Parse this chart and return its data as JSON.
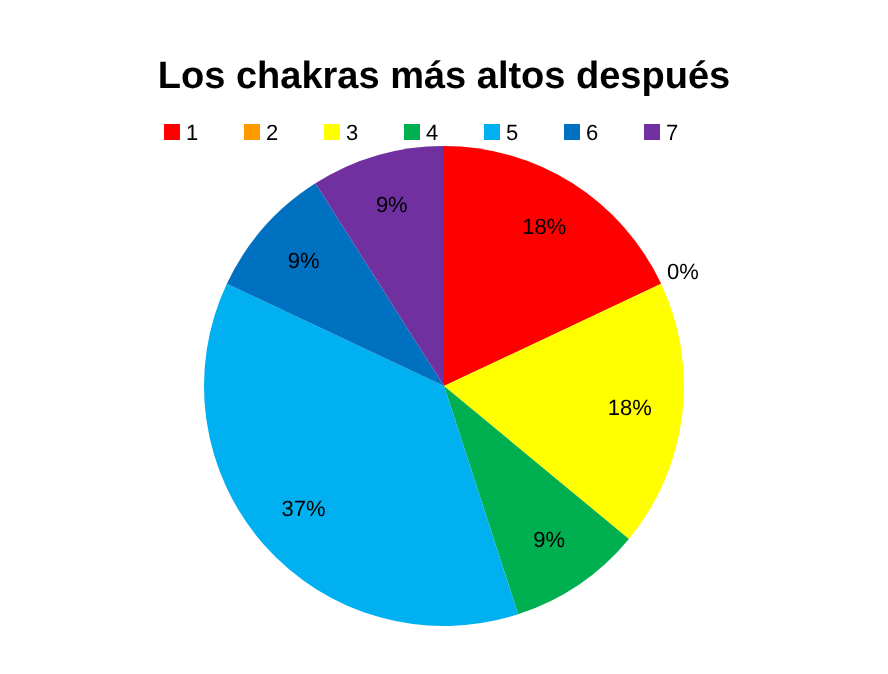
{
  "chart_data": {
    "type": "pie",
    "title": "Los chakras más altos después",
    "categories": [
      "1",
      "2",
      "3",
      "4",
      "5",
      "6",
      "7"
    ],
    "values": [
      18,
      0,
      18,
      9,
      37,
      9,
      9
    ],
    "colors": [
      "#ff0000",
      "#ff9900",
      "#ffff00",
      "#00b050",
      "#00b0f0",
      "#0070c0",
      "#7030a0"
    ],
    "value_labels": [
      "18%",
      "0%",
      "18%",
      "9%",
      "37%",
      "9%",
      "9%"
    ],
    "legend": "top"
  }
}
